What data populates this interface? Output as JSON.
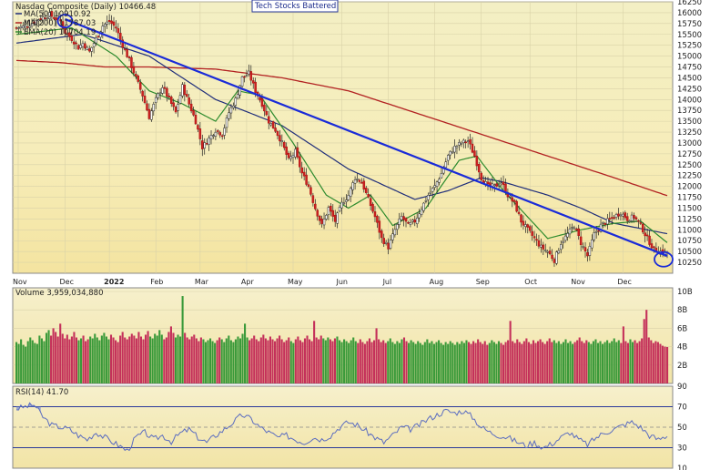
{
  "chart_data": [
    {
      "type": "candlestick",
      "title": "Nasdaq Composite (Daily) 10466.48",
      "annotation": "Tech Stocks Battered",
      "legend": [
        {
          "name": "MA(50) 10910.92",
          "color": "#1f2d7a"
        },
        {
          "name": "MA(200) 11787.03",
          "color": "#b22222"
        },
        {
          "name": "EMA(20) 10704.19",
          "color": "#2e8b2e"
        }
      ],
      "ylim": [
        10000,
        16250
      ],
      "y_ticks": [
        "16250",
        "16000",
        "15750",
        "15500",
        "15250",
        "15000",
        "14750",
        "14500",
        "14250",
        "14000",
        "13750",
        "13500",
        "13250",
        "13000",
        "12750",
        "12500",
        "12250",
        "12000",
        "11750",
        "11500",
        "11250",
        "11000",
        "10750",
        "10500",
        "10250"
      ],
      "x_ticks": [
        "Nov",
        "Dec",
        "2022",
        "Feb",
        "Mar",
        "Apr",
        "May",
        "Jun",
        "Jul",
        "Aug",
        "Sep",
        "Oct",
        "Nov",
        "Dec"
      ],
      "closes": [
        [
          0,
          15650
        ],
        [
          5,
          15700
        ],
        [
          10,
          15850
        ],
        [
          15,
          15950
        ],
        [
          20,
          15800
        ],
        [
          22,
          15550
        ],
        [
          25,
          15400
        ],
        [
          28,
          15200
        ],
        [
          30,
          15300
        ],
        [
          33,
          15100
        ],
        [
          36,
          15400
        ],
        [
          39,
          15700
        ],
        [
          42,
          15800
        ],
        [
          45,
          15650
        ],
        [
          48,
          15250
        ],
        [
          51,
          14900
        ],
        [
          54,
          14500
        ],
        [
          57,
          14100
        ],
        [
          60,
          13600
        ],
        [
          63,
          14000
        ],
        [
          66,
          14300
        ],
        [
          69,
          14000
        ],
        [
          72,
          13700
        ],
        [
          75,
          14300
        ],
        [
          78,
          13900
        ],
        [
          81,
          13500
        ],
        [
          84,
          12900
        ],
        [
          87,
          13100
        ],
        [
          90,
          13300
        ],
        [
          93,
          13200
        ],
        [
          96,
          13700
        ],
        [
          99,
          14000
        ],
        [
          102,
          14500
        ],
        [
          105,
          14600
        ],
        [
          108,
          14200
        ],
        [
          111,
          13900
        ],
        [
          114,
          13500
        ],
        [
          117,
          13300
        ],
        [
          120,
          13000
        ],
        [
          123,
          12600
        ],
        [
          126,
          12800
        ],
        [
          129,
          12300
        ],
        [
          132,
          12000
        ],
        [
          135,
          11500
        ],
        [
          138,
          11100
        ],
        [
          141,
          11500
        ],
        [
          144,
          11200
        ],
        [
          147,
          11600
        ],
        [
          150,
          11800
        ],
        [
          153,
          12200
        ],
        [
          156,
          12100
        ],
        [
          159,
          11700
        ],
        [
          162,
          11300
        ],
        [
          165,
          10800
        ],
        [
          168,
          10600
        ],
        [
          171,
          11000
        ],
        [
          174,
          11300
        ],
        [
          177,
          11100
        ],
        [
          180,
          11200
        ],
        [
          183,
          11500
        ],
        [
          186,
          11800
        ],
        [
          189,
          12000
        ],
        [
          192,
          12300
        ],
        [
          195,
          12700
        ],
        [
          198,
          12900
        ],
        [
          201,
          13000
        ],
        [
          204,
          13050
        ],
        [
          207,
          12700
        ],
        [
          210,
          12200
        ],
        [
          213,
          12000
        ],
        [
          216,
          12000
        ],
        [
          219,
          12100
        ],
        [
          222,
          11800
        ],
        [
          225,
          11600
        ],
        [
          228,
          11200
        ],
        [
          231,
          11000
        ],
        [
          234,
          10800
        ],
        [
          237,
          10600
        ],
        [
          240,
          10500
        ],
        [
          243,
          10300
        ],
        [
          246,
          10700
        ],
        [
          249,
          10900
        ],
        [
          252,
          11100
        ],
        [
          255,
          10700
        ],
        [
          258,
          10400
        ],
        [
          261,
          10900
        ],
        [
          264,
          11100
        ],
        [
          267,
          11200
        ],
        [
          270,
          11300
        ],
        [
          273,
          11400
        ],
        [
          276,
          11250
        ],
        [
          279,
          11300
        ],
        [
          282,
          11100
        ],
        [
          285,
          10800
        ],
        [
          288,
          10550
        ],
        [
          291,
          10500
        ],
        [
          294,
          10466
        ]
      ],
      "ma50": [
        [
          0,
          15300
        ],
        [
          30,
          15500
        ],
        [
          60,
          15000
        ],
        [
          90,
          14000
        ],
        [
          120,
          13400
        ],
        [
          150,
          12400
        ],
        [
          180,
          11700
        ],
        [
          195,
          11900
        ],
        [
          210,
          12200
        ],
        [
          220,
          12100
        ],
        [
          240,
          11800
        ],
        [
          255,
          11500
        ],
        [
          270,
          11150
        ],
        [
          294,
          10910
        ]
      ],
      "ma200": [
        [
          0,
          14900
        ],
        [
          20,
          14850
        ],
        [
          40,
          14750
        ],
        [
          60,
          14750
        ],
        [
          90,
          14700
        ],
        [
          120,
          14500
        ],
        [
          150,
          14200
        ],
        [
          180,
          13700
        ],
        [
          210,
          13200
        ],
        [
          240,
          12700
        ],
        [
          270,
          12200
        ],
        [
          294,
          11787
        ]
      ],
      "ema20": [
        [
          0,
          15500
        ],
        [
          25,
          15650
        ],
        [
          45,
          15000
        ],
        [
          60,
          14200
        ],
        [
          75,
          13900
        ],
        [
          90,
          13500
        ],
        [
          100,
          14200
        ],
        [
          110,
          14100
        ],
        [
          125,
          13000
        ],
        [
          140,
          11800
        ],
        [
          150,
          11500
        ],
        [
          160,
          11800
        ],
        [
          170,
          11100
        ],
        [
          185,
          11500
        ],
        [
          200,
          12600
        ],
        [
          208,
          12700
        ],
        [
          220,
          11900
        ],
        [
          240,
          10800
        ],
        [
          255,
          11000
        ],
        [
          270,
          11150
        ],
        [
          282,
          11200
        ],
        [
          294,
          10704
        ]
      ],
      "trendline": [
        [
          22,
          15850
        ],
        [
          294,
          10400
        ]
      ]
    },
    {
      "type": "bar",
      "title": "Volume 3,959,034,880",
      "ylim": [
        0,
        10
      ],
      "y_ticks": [
        "10B",
        "8B",
        "6B",
        "4B",
        "2B"
      ],
      "values_billions": [
        4.5,
        4.3,
        4.8,
        4.2,
        4.0,
        4.6,
        5.0,
        4.7,
        4.4,
        4.3,
        5.2,
        4.9,
        4.6,
        5.5,
        5.8,
        5.2,
        6.0,
        5.6,
        5.1,
        6.5,
        5.4,
        4.9,
        5.3,
        4.8,
        5.1,
        5.6,
        5.0,
        4.7,
        4.9,
        5.2,
        4.6,
        4.8,
        5.1,
        4.9,
        5.4,
        5.0,
        4.7,
        5.2,
        5.5,
        5.1,
        4.8,
        5.3,
        5.0,
        4.7,
        4.5,
        5.2,
        5.6,
        5.0,
        4.8,
        5.1,
        5.4,
        5.2,
        4.9,
        5.6,
        5.1,
        4.8,
        5.3,
        5.7,
        5.1,
        4.9,
        5.4,
        5.2,
        5.8,
        5.3,
        4.8,
        5.0,
        5.6,
        6.2,
        5.5,
        5.0,
        5.3,
        5.1,
        9.5,
        5.5,
        5.0,
        4.8,
        5.1,
        5.3,
        4.9,
        4.6,
        5.0,
        4.8,
        4.5,
        4.7,
        4.9,
        4.6,
        4.4,
        4.7,
        5.0,
        4.8,
        4.5,
        4.9,
        5.2,
        4.7,
        4.5,
        4.8,
        5.1,
        4.9,
        5.4,
        6.5,
        5.0,
        4.7,
        4.9,
        5.2,
        4.8,
        4.6,
        5.0,
        5.3,
        4.9,
        4.7,
        5.1,
        4.8,
        4.6,
        4.9,
        5.2,
        4.8,
        4.5,
        4.7,
        5.0,
        4.6,
        4.4,
        4.8,
        5.1,
        4.7,
        4.5,
        4.9,
        5.2,
        4.8,
        4.6,
        6.8,
        5.0,
        4.8,
        5.2,
        4.9,
        4.7,
        5.0,
        4.8,
        4.6,
        4.9,
        5.1,
        4.7,
        4.5,
        4.8,
        4.6,
        4.4,
        4.7,
        5.0,
        4.6,
        4.4,
        4.8,
        4.5,
        4.3,
        4.6,
        4.9,
        4.5,
        4.7,
        6.0,
        4.8,
        4.5,
        4.7,
        4.4,
        4.6,
        4.9,
        4.5,
        4.3,
        4.6,
        4.4,
        4.8,
        5.0,
        4.6,
        4.4,
        4.7,
        4.5,
        4.3,
        4.6,
        4.4,
        4.2,
        4.5,
        4.8,
        4.4,
        4.6,
        4.3,
        4.5,
        4.7,
        4.4,
        4.2,
        4.5,
        4.3,
        4.6,
        4.4,
        4.2,
        4.5,
        4.3,
        4.6,
        4.4,
        4.7,
        4.5,
        4.3,
        4.6,
        4.4,
        4.8,
        4.5,
        4.3,
        4.6,
        4.2,
        4.4,
        4.7,
        4.5,
        4.3,
        4.6,
        4.4,
        4.2,
        4.5,
        4.7,
        6.8,
        4.6,
        4.4,
        4.8,
        4.5,
        4.3,
        4.6,
        4.9,
        4.5,
        4.3,
        4.7,
        4.4,
        4.6,
        4.8,
        4.5,
        4.3,
        4.6,
        4.9,
        4.5,
        4.7,
        4.4,
        4.6,
        4.3,
        4.5,
        4.8,
        4.4,
        4.6,
        4.3,
        4.5,
        4.7,
        5.0,
        4.6,
        4.4,
        4.7,
        4.5,
        4.3,
        4.6,
        4.8,
        4.4,
        4.6,
        4.3,
        4.5,
        4.7,
        4.4,
        4.6,
        4.9,
        4.5,
        4.7,
        4.4,
        6.2,
        4.6,
        4.4,
        4.8,
        4.5,
        4.7,
        4.4,
        4.6,
        4.9,
        7.0,
        8.0,
        5.0,
        4.7,
        4.4,
        4.6,
        4.5,
        4.3,
        4.1,
        4.0,
        3.96
      ]
    },
    {
      "type": "line",
      "title": "RSI(14) 41.70",
      "ylim": [
        10,
        90
      ],
      "y_ticks": [
        "90",
        "70",
        "50",
        "30",
        "10"
      ],
      "reference_lines": [
        70,
        50,
        30
      ],
      "values": [
        [
          0,
          68
        ],
        [
          4,
          70
        ],
        [
          8,
          72
        ],
        [
          12,
          60
        ],
        [
          16,
          52
        ],
        [
          20,
          50
        ],
        [
          24,
          48
        ],
        [
          28,
          42
        ],
        [
          32,
          38
        ],
        [
          36,
          45
        ],
        [
          40,
          40
        ],
        [
          44,
          35
        ],
        [
          48,
          30
        ],
        [
          50,
          27
        ],
        [
          54,
          40
        ],
        [
          58,
          45
        ],
        [
          62,
          38
        ],
        [
          66,
          42
        ],
        [
          70,
          36
        ],
        [
          74,
          44
        ],
        [
          78,
          48
        ],
        [
          82,
          40
        ],
        [
          86,
          35
        ],
        [
          90,
          42
        ],
        [
          94,
          48
        ],
        [
          98,
          55
        ],
        [
          102,
          62
        ],
        [
          106,
          58
        ],
        [
          110,
          50
        ],
        [
          114,
          45
        ],
        [
          118,
          40
        ],
        [
          122,
          42
        ],
        [
          126,
          38
        ],
        [
          130,
          35
        ],
        [
          134,
          40
        ],
        [
          138,
          38
        ],
        [
          142,
          42
        ],
        [
          146,
          50
        ],
        [
          150,
          55
        ],
        [
          154,
          52
        ],
        [
          158,
          46
        ],
        [
          162,
          40
        ],
        [
          166,
          35
        ],
        [
          170,
          42
        ],
        [
          174,
          50
        ],
        [
          178,
          48
        ],
        [
          182,
          52
        ],
        [
          186,
          58
        ],
        [
          190,
          62
        ],
        [
          194,
          66
        ],
        [
          198,
          64
        ],
        [
          202,
          66
        ],
        [
          206,
          60
        ],
        [
          210,
          50
        ],
        [
          214,
          45
        ],
        [
          218,
          42
        ],
        [
          222,
          40
        ],
        [
          226,
          36
        ],
        [
          230,
          32
        ],
        [
          234,
          35
        ],
        [
          238,
          30
        ],
        [
          242,
          34
        ],
        [
          246,
          40
        ],
        [
          250,
          45
        ],
        [
          254,
          38
        ],
        [
          258,
          33
        ],
        [
          262,
          40
        ],
        [
          266,
          45
        ],
        [
          270,
          48
        ],
        [
          274,
          52
        ],
        [
          278,
          55
        ],
        [
          282,
          50
        ],
        [
          286,
          42
        ],
        [
          290,
          38
        ],
        [
          294,
          41.7
        ]
      ]
    }
  ]
}
